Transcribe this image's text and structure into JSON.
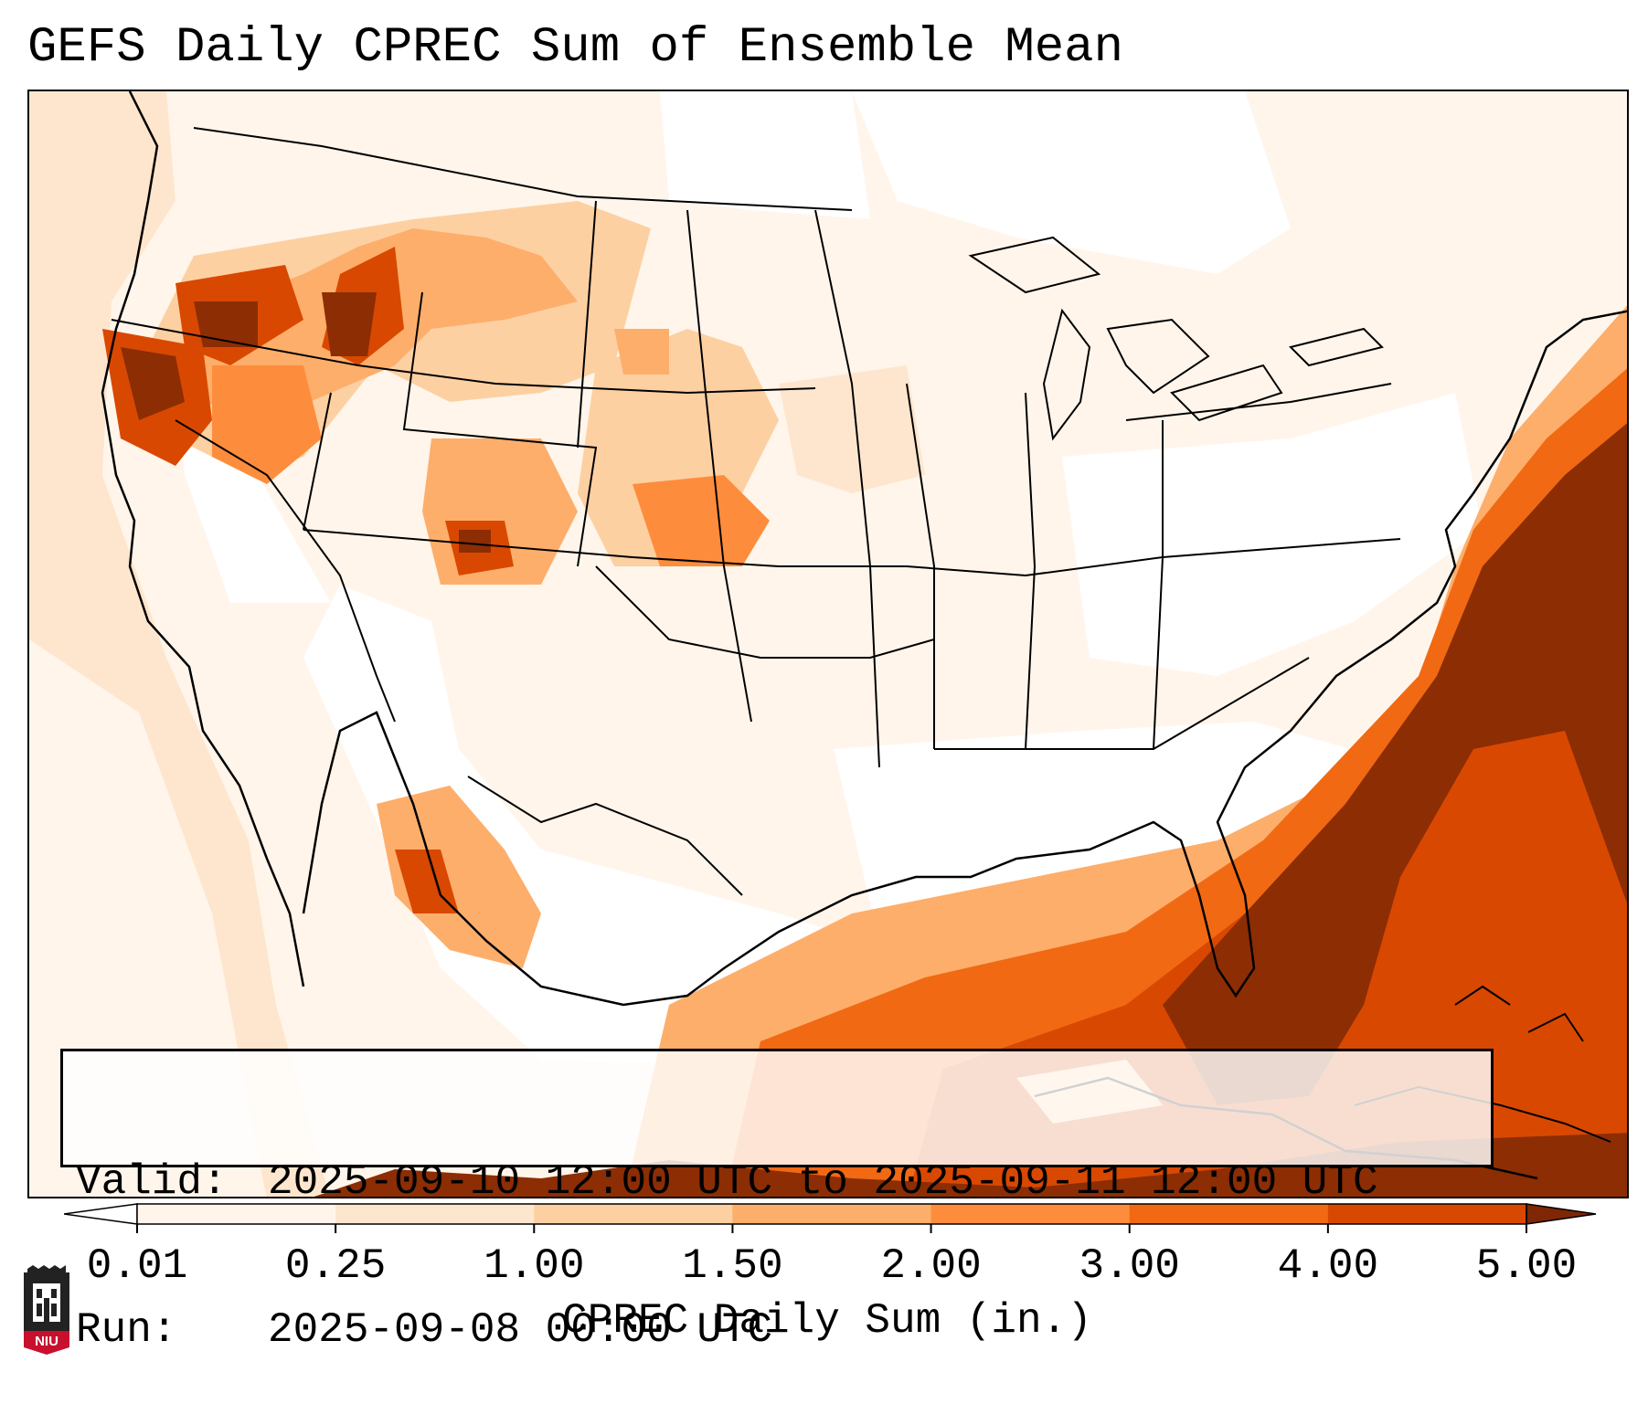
{
  "title": "GEFS Daily CPREC Sum of Ensemble Mean",
  "info": {
    "valid_label": "Valid:",
    "valid_value": "2025-09-10 12:00 UTC to 2025-09-11 12:00 UTC",
    "run_label": "Run:",
    "run_value": "2025-09-08 00:00 UTC"
  },
  "colorbar": {
    "label": "CPREC Daily Sum (in.)",
    "ticks": [
      "0.01",
      "0.25",
      "1.00",
      "1.50",
      "2.00",
      "3.00",
      "4.00",
      "5.00"
    ],
    "colors": [
      "#fff5eb",
      "#fee6ce",
      "#fdd0a2",
      "#fdae6b",
      "#fd8d3c",
      "#f16913",
      "#d94801",
      "#8c2d04"
    ],
    "under_color": "#ffffff",
    "over_color": "#7f2704"
  },
  "logo": {
    "text": "NIU"
  }
}
